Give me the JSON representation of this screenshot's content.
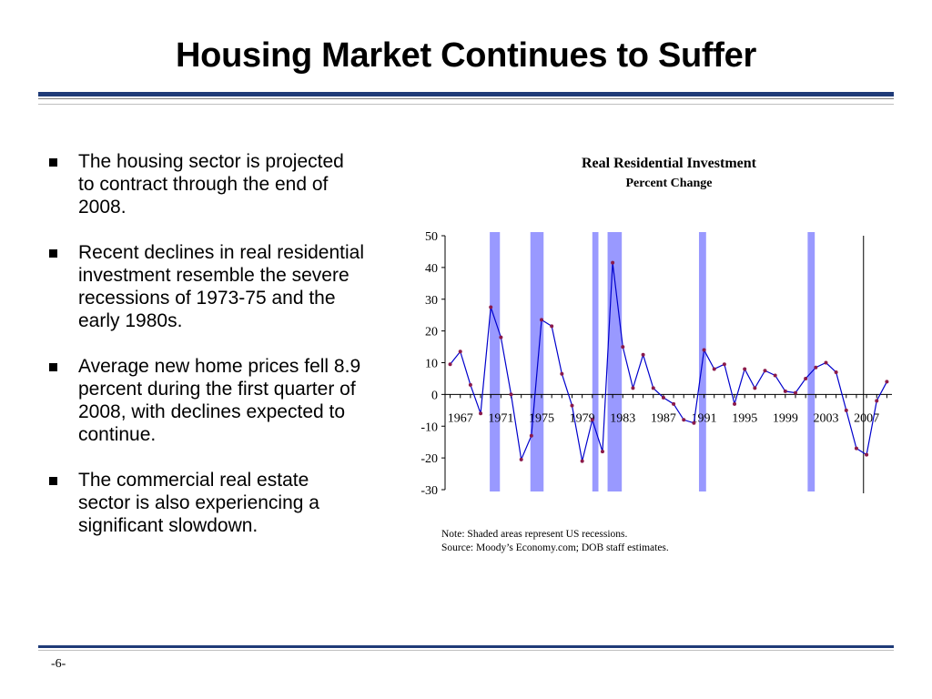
{
  "title": "Housing Market Continues to Suffer",
  "bullets": [
    "The housing sector is projected to contract through the end of 2008.",
    "Recent declines in real residential investment resemble the severe recessions of 1973-75 and the early 1980s.",
    "Average new home prices fell 8.9 percent during the first quarter of 2008, with declines expected to continue.",
    "The commercial real estate sector is also experiencing a significant slowdown."
  ],
  "chart_data": {
    "type": "line",
    "title": "Real Residential Investment",
    "subtitle": "Percent Change",
    "ylim": [
      -30,
      50
    ],
    "yticks": [
      50,
      40,
      30,
      20,
      10,
      0,
      -10,
      -20,
      -30
    ],
    "xlim": [
      1965.5,
      2009.5
    ],
    "xticks": [
      1967,
      1971,
      1975,
      1979,
      1983,
      1987,
      1991,
      1995,
      1999,
      2003,
      2007
    ],
    "forecast_marker_year": 2006.7,
    "series": [
      {
        "color": "#0000cc",
        "marker_color": "#8b1a4a",
        "x": [
          1966,
          1967,
          1968,
          1969,
          1970,
          1971,
          1972,
          1973,
          1974,
          1975,
          1976,
          1977,
          1978,
          1979,
          1980,
          1981,
          1982,
          1983,
          1984,
          1985,
          1986,
          1987,
          1988,
          1989,
          1990,
          1991,
          1992,
          1993,
          1994,
          1995,
          1996,
          1997,
          1998,
          1999,
          2000,
          2001,
          2002,
          2003,
          2004,
          2005,
          2006,
          2007,
          2008,
          2009
        ],
        "y": [
          9.5,
          13.5,
          3,
          -6,
          27.5,
          18,
          0,
          -20.5,
          -13,
          23.5,
          21.5,
          6.5,
          -3.5,
          -21,
          -8,
          -18,
          41.5,
          15,
          2,
          12.5,
          2,
          -1,
          -3,
          -8,
          -9,
          14,
          8,
          9.5,
          -3,
          8,
          2,
          7.5,
          6,
          1,
          0.5,
          5,
          8.5,
          10,
          7,
          -5,
          -17,
          -19,
          -2,
          4
        ]
      }
    ],
    "recessions": [
      [
        1969.9,
        1970.9
      ],
      [
        1973.9,
        1975.2
      ],
      [
        1980.0,
        1980.6
      ],
      [
        1981.5,
        1982.9
      ],
      [
        1990.5,
        1991.2
      ],
      [
        2001.2,
        2001.9
      ]
    ],
    "shade_color": "#9999ff"
  },
  "note_lines": [
    "Note: Shaded areas represent US recessions.",
    "Source: Moody’s Economy.com; DOB staff estimates."
  ],
  "page_number": "-6-"
}
